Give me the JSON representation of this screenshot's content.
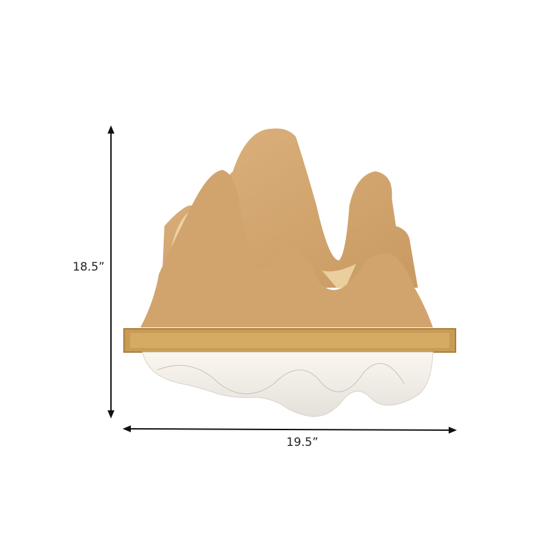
{
  "dimensions": {
    "height": "18.5”",
    "width": "19.5”"
  },
  "colors": {
    "wood": "#d8ad78",
    "wood_dark": "#b88650",
    "glow": "#f7e3b5",
    "frame": "#c79a52",
    "acrylic": "#eeeae4",
    "line": "#111111"
  }
}
